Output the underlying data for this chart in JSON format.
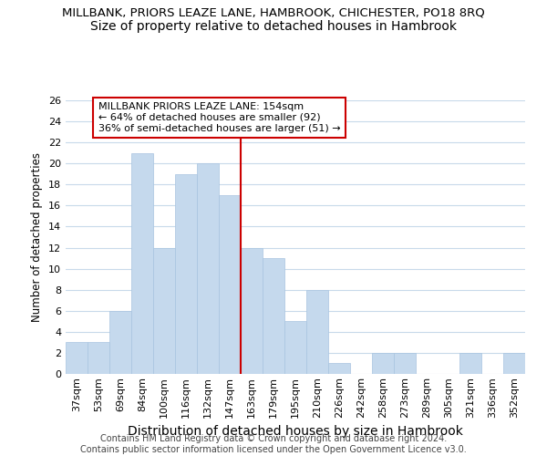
{
  "title1": "MILLBANK, PRIORS LEAZE LANE, HAMBROOK, CHICHESTER, PO18 8RQ",
  "title2": "Size of property relative to detached houses in Hambrook",
  "xlabel": "Distribution of detached houses by size in Hambrook",
  "ylabel": "Number of detached properties",
  "categories": [
    "37sqm",
    "53sqm",
    "69sqm",
    "84sqm",
    "100sqm",
    "116sqm",
    "132sqm",
    "147sqm",
    "163sqm",
    "179sqm",
    "195sqm",
    "210sqm",
    "226sqm",
    "242sqm",
    "258sqm",
    "273sqm",
    "289sqm",
    "305sqm",
    "321sqm",
    "336sqm",
    "352sqm"
  ],
  "values": [
    3,
    3,
    6,
    21,
    12,
    19,
    20,
    17,
    12,
    11,
    5,
    8,
    1,
    0,
    2,
    2,
    0,
    0,
    2,
    0,
    2
  ],
  "highlight_index": 7,
  "bar_color": "#c5d9ed",
  "bar_edge_color": "#a8c4e0",
  "grid_color": "#c8daea",
  "annotation_box_text": "MILLBANK PRIORS LEAZE LANE: 154sqm\n← 64% of detached houses are smaller (92)\n36% of semi-detached houses are larger (51) →",
  "annotation_box_color": "#cc0000",
  "vline_color": "#cc0000",
  "footer1": "Contains HM Land Registry data © Crown copyright and database right 2024.",
  "footer2": "Contains public sector information licensed under the Open Government Licence v3.0.",
  "ylim": [
    0,
    26
  ],
  "yticks": [
    0,
    2,
    4,
    6,
    8,
    10,
    12,
    14,
    16,
    18,
    20,
    22,
    24,
    26
  ],
  "title1_fontsize": 9.5,
  "title2_fontsize": 10,
  "xlabel_fontsize": 10,
  "ylabel_fontsize": 8.5,
  "tick_fontsize": 8,
  "annotation_fontsize": 8,
  "footer_fontsize": 7
}
